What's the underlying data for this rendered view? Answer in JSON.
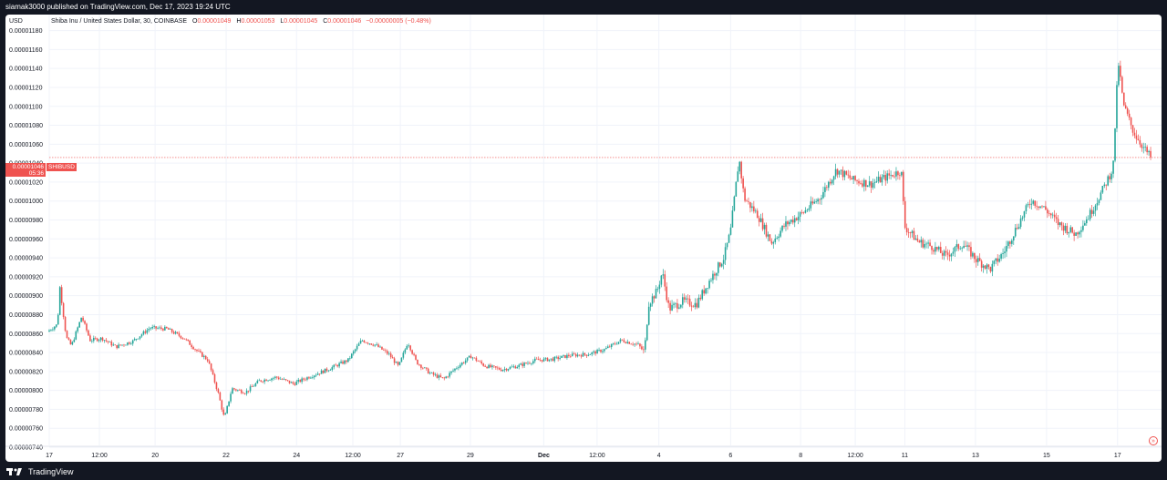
{
  "header": {
    "published_text": "siamak3000 published on TradingView.com, Dec 17, 2023 19:24 UTC"
  },
  "footer": {
    "brand": "TradingView"
  },
  "legend": {
    "symbol_text": "Shiba Inu / United States Dollar, 30, COINBASE",
    "open_label": "O",
    "open_value": "0.00001049",
    "high_label": "H",
    "high_value": "0.00001053",
    "low_label": "L",
    "low_value": "0.00001045",
    "close_label": "C",
    "close_value": "0.00001046",
    "change_value": "−0.00000005 (−0.48%)"
  },
  "axis": {
    "currency": "USD",
    "current_price": "0.00001046",
    "countdown": "05:36",
    "symbol_tag": "SHIBUSD"
  },
  "colors": {
    "up": "#26a69a",
    "down": "#ef5350",
    "background": "#131722",
    "panel": "#ffffff"
  },
  "chart_data": {
    "type": "candlestick",
    "symbol": "SHIBUSD",
    "interval": "30",
    "exchange": "COINBASE",
    "ylim": [
      7.4e-06,
      1.195e-05
    ],
    "y_ticks": [
      "0.00001180",
      "0.00001160",
      "0.00001140",
      "0.00001120",
      "0.00001100",
      "0.00001080",
      "0.00001060",
      "0.00001040",
      "0.00001020",
      "0.00001000",
      "0.00000980",
      "0.00000960",
      "0.00000940",
      "0.00000920",
      "0.00000900",
      "0.00000880",
      "0.00000860",
      "0.00000840",
      "0.00000820",
      "0.00000800",
      "0.00000780",
      "0.00000760",
      "0.00000740"
    ],
    "x_ticks": [
      "17",
      "12:00",
      "20",
      "22",
      "24",
      "12:00",
      "27",
      "29",
      "Dec",
      "12:00",
      "4",
      "6",
      "8",
      "12:00",
      "11",
      "13",
      "15",
      "17"
    ],
    "x_tick_index": [
      0,
      1.47,
      3.1,
      5.18,
      7.24,
      8.89,
      10.28,
      12.33,
      14.48,
      16.04,
      17.85,
      19.95,
      22.0,
      23.6,
      25.05,
      27.12,
      29.2,
      31.28
    ],
    "x_range": [
      0,
      32.3
    ],
    "price_path": [
      [
        0,
        8.62e-06
      ],
      [
        0.3,
        8.7e-06
      ],
      [
        0.35,
        9.13e-06
      ],
      [
        0.55,
        8.56e-06
      ],
      [
        0.7,
        8.47e-06
      ],
      [
        1.0,
        8.78e-06
      ],
      [
        1.25,
        8.53e-06
      ],
      [
        1.6,
        8.55e-06
      ],
      [
        2.0,
        8.46e-06
      ],
      [
        2.5,
        8.52e-06
      ],
      [
        3.0,
        8.66e-06
      ],
      [
        3.5,
        8.65e-06
      ],
      [
        4.0,
        8.55e-06
      ],
      [
        4.4,
        8.41e-06
      ],
      [
        4.7,
        8.32e-06
      ],
      [
        5.0,
        7.97e-06
      ],
      [
        5.18,
        7.7e-06
      ],
      [
        5.4,
        8.02e-06
      ],
      [
        5.8,
        7.98e-06
      ],
      [
        6.2,
        8.1e-06
      ],
      [
        6.7,
        8.14e-06
      ],
      [
        7.2,
        8.07e-06
      ],
      [
        7.7,
        8.15e-06
      ],
      [
        8.2,
        8.22e-06
      ],
      [
        8.8,
        8.32e-06
      ],
      [
        9.2,
        8.53e-06
      ],
      [
        9.6,
        8.48e-06
      ],
      [
        10.0,
        8.38e-06
      ],
      [
        10.28,
        8.25e-06
      ],
      [
        10.55,
        8.51e-06
      ],
      [
        10.8,
        8.3e-06
      ],
      [
        11.2,
        8.18e-06
      ],
      [
        11.6,
        8.12e-06
      ],
      [
        12.0,
        8.25e-06
      ],
      [
        12.4,
        8.36e-06
      ],
      [
        12.8,
        8.26e-06
      ],
      [
        13.3,
        8.22e-06
      ],
      [
        13.8,
        8.26e-06
      ],
      [
        14.3,
        8.32e-06
      ],
      [
        14.8,
        8.33e-06
      ],
      [
        15.3,
        8.37e-06
      ],
      [
        15.8,
        8.38e-06
      ],
      [
        16.3,
        8.43e-06
      ],
      [
        16.8,
        8.53e-06
      ],
      [
        17.3,
        8.48e-06
      ],
      [
        17.48,
        8.4e-06
      ],
      [
        17.6,
        8.92e-06
      ],
      [
        17.85,
        9.05e-06
      ],
      [
        18.0,
        9.25e-06
      ],
      [
        18.2,
        8.86e-06
      ],
      [
        18.6,
        8.94e-06
      ],
      [
        19.0,
        8.91e-06
      ],
      [
        19.4,
        9.17e-06
      ],
      [
        19.8,
        9.4e-06
      ],
      [
        20.0,
        9.68e-06
      ],
      [
        20.25,
        1.045e-05
      ],
      [
        20.4,
        1.003e-05
      ],
      [
        20.8,
        9.85e-06
      ],
      [
        21.2,
        9.56e-06
      ],
      [
        21.6,
        9.75e-06
      ],
      [
        22.1,
        9.87e-06
      ],
      [
        22.6,
        1.003e-05
      ],
      [
        23.1,
        1.033e-05
      ],
      [
        23.6,
        1.022e-05
      ],
      [
        24.1,
        1.018e-05
      ],
      [
        24.6,
        1.026e-05
      ],
      [
        25.0,
        1.032e-05
      ],
      [
        25.1,
        9.73e-06
      ],
      [
        25.5,
        9.57e-06
      ],
      [
        25.9,
        9.52e-06
      ],
      [
        26.3,
        9.42e-06
      ],
      [
        26.8,
        9.55e-06
      ],
      [
        27.2,
        9.38e-06
      ],
      [
        27.6,
        9.28e-06
      ],
      [
        28.0,
        9.46e-06
      ],
      [
        28.4,
        9.74e-06
      ],
      [
        28.8,
        1.001e-05
      ],
      [
        29.2,
        9.92e-06
      ],
      [
        29.6,
        9.76e-06
      ],
      [
        30.1,
        9.65e-06
      ],
      [
        30.5,
        9.85e-06
      ],
      [
        30.9,
        1.012e-05
      ],
      [
        31.2,
        1.035e-05
      ],
      [
        31.35,
        1.148e-05
      ],
      [
        31.5,
        1.102e-05
      ],
      [
        31.8,
        1.073e-05
      ],
      [
        32.1,
        1.056e-05
      ],
      [
        32.3,
        1.046e-05
      ]
    ],
    "last_close": 1.046e-05
  }
}
